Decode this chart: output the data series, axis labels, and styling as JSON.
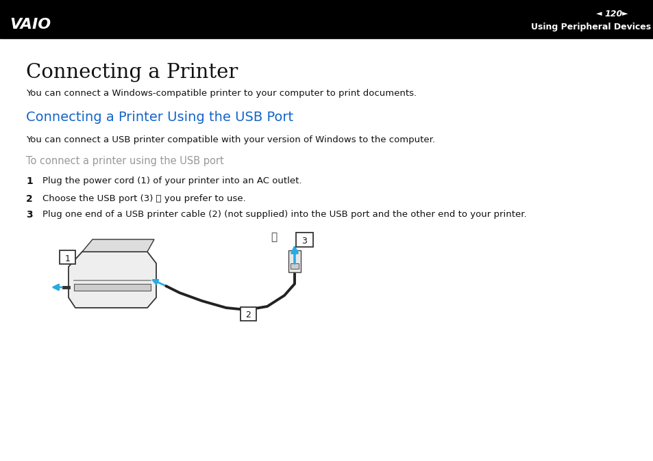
{
  "bg_color": "#ffffff",
  "header_bg": "#000000",
  "page_number": "120",
  "header_right_text": "Using Peripheral Devices",
  "main_title": "Connecting a Printer",
  "para1": "You can connect a Windows-compatible printer to your computer to print documents.",
  "section_title": "Connecting a Printer Using the USB Port",
  "section_title_color": "#1465c8",
  "para2": "You can connect a USB printer compatible with your version of Windows to the computer.",
  "subtitle": "To connect a printer using the USB port",
  "subtitle_color": "#999999",
  "step1_num": "1",
  "step1_text": "Plug the power cord (1) of your printer into an AC outlet.",
  "step2_num": "2",
  "step2_text": "Choose the USB port (3) ␥ you prefer to use.",
  "step3_num": "3",
  "step3_text": "Plug one end of a USB printer cable (2) (not supplied) into the USB port and the other end to your printer.",
  "arrow_color": "#29aae1",
  "cable_color": "#222222",
  "label_fg": "#000000",
  "label_bg": "#ffffff"
}
